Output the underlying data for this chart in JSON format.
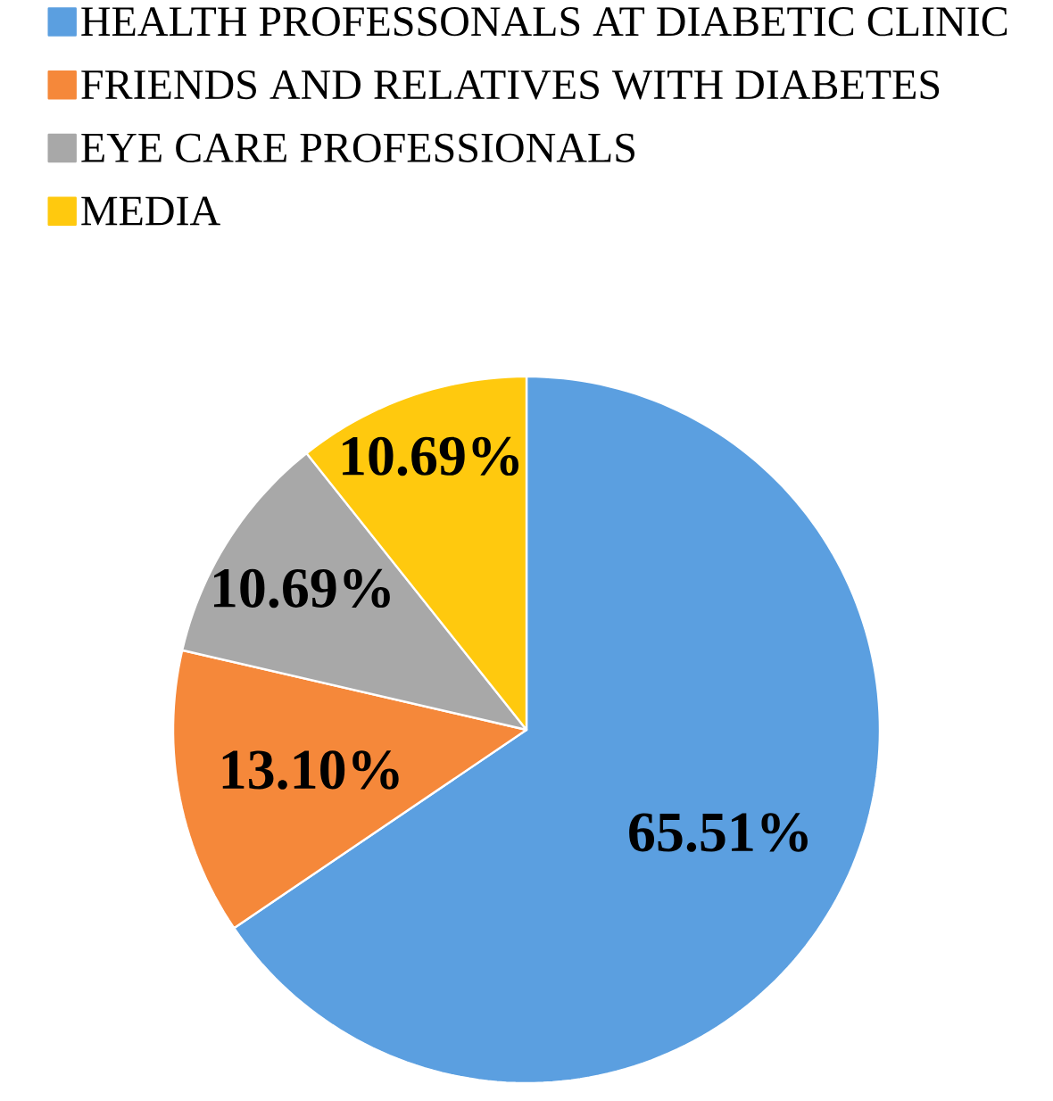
{
  "chart_data": {
    "type": "pie",
    "categories": [
      "HEALTH PROFESSONALS AT DIABETIC CLINIC",
      "FRIENDS AND RELATIVES WITH DIABETES",
      "EYE CARE PROFESSIONALS",
      "MEDIA"
    ],
    "values": [
      65.51,
      13.1,
      10.69,
      10.69
    ],
    "value_labels": [
      "65.51%",
      "13.10%",
      "10.69%",
      "10.69%"
    ],
    "colors": [
      "#5b9fe0",
      "#f5883a",
      "#a8a8a8",
      "#ffc90e"
    ],
    "legend": "top left"
  }
}
